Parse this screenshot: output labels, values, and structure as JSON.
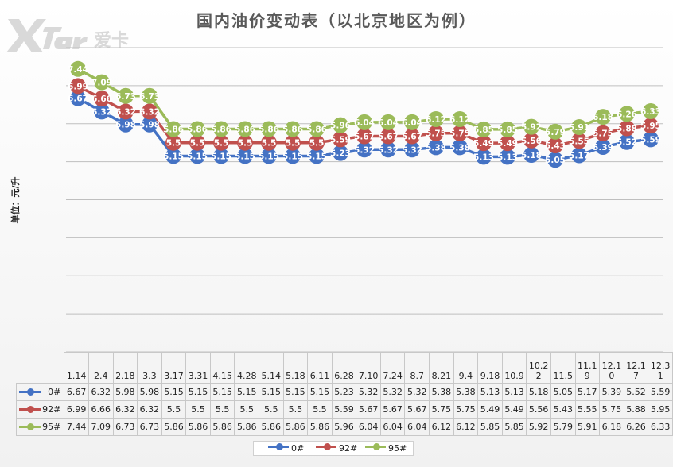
{
  "title": "国内油价变动表（以北京地区为例）",
  "brand": "爱卡",
  "ylabel": "单位：元/升",
  "chart_data": {
    "type": "line",
    "title": "国内油价变动表（以北京地区为例）",
    "ylabel": "单位：元/升",
    "categories": [
      "1.14",
      "2.4",
      "2.18",
      "3.3",
      "3.17",
      "3.31",
      "4.15",
      "4.28",
      "5.14",
      "5.18",
      "6.11",
      "6.28",
      "7.10",
      "7.24",
      "8.7",
      "8.21",
      "9.4",
      "9.18",
      "10.9",
      "10.22",
      "11.5",
      "11.19",
      "12.10",
      "12.17",
      "12.31"
    ],
    "series": [
      {
        "name": "0#",
        "color": "#4472C4",
        "values": [
          6.67,
          6.32,
          5.98,
          5.98,
          5.15,
          5.15,
          5.15,
          5.15,
          5.15,
          5.15,
          5.15,
          5.23,
          5.32,
          5.32,
          5.32,
          5.38,
          5.38,
          5.13,
          5.13,
          5.18,
          5.05,
          5.17,
          5.39,
          5.52,
          5.59
        ]
      },
      {
        "name": "92#",
        "color": "#C0504D",
        "values": [
          6.99,
          6.66,
          6.32,
          6.32,
          5.5,
          5.5,
          5.5,
          5.5,
          5.5,
          5.5,
          5.5,
          5.59,
          5.67,
          5.67,
          5.67,
          5.75,
          5.75,
          5.49,
          5.49,
          5.56,
          5.43,
          5.55,
          5.75,
          5.88,
          5.95
        ]
      },
      {
        "name": "95#",
        "color": "#9BBB59",
        "values": [
          7.44,
          7.09,
          6.73,
          6.73,
          5.86,
          5.86,
          5.86,
          5.86,
          5.86,
          5.86,
          5.86,
          5.96,
          6.04,
          6.04,
          6.04,
          6.12,
          6.12,
          5.85,
          5.85,
          5.92,
          5.79,
          5.91,
          6.18,
          6.26,
          6.33
        ]
      }
    ],
    "ylim": [
      0,
      8
    ],
    "grid": true,
    "legend_position": "bottom",
    "data_table": true
  }
}
